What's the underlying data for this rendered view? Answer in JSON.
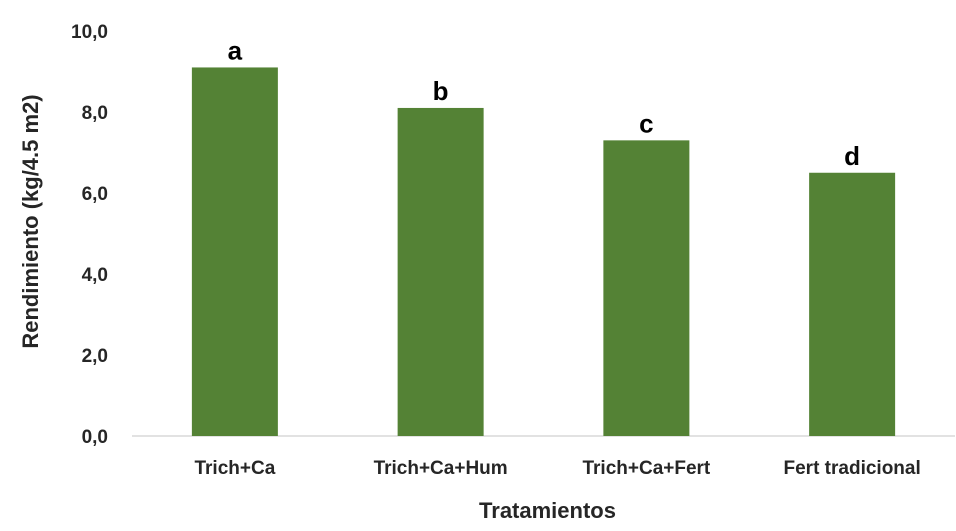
{
  "chart_data": {
    "type": "bar",
    "categories": [
      "Trich+Ca",
      "Trich+Ca+Hum",
      "Trich+Ca+Fert",
      "Fert tradicional"
    ],
    "values": [
      9.1,
      8.1,
      7.3,
      6.5
    ],
    "data_labels": [
      "a",
      "b",
      "c",
      "d"
    ],
    "xlabel": "Tratamientos",
    "ylabel": "Rendimiento  (kg/4.5 m2)",
    "ylim": [
      0,
      10
    ],
    "yticks": [
      0,
      2,
      4,
      6,
      8,
      10
    ],
    "ytick_labels": [
      "0,0",
      "2,0",
      "4,0",
      "6,0",
      "8,0",
      "10,0"
    ],
    "grid": false,
    "bar_color": "#548235",
    "axis_color": "#d9d9d9"
  }
}
